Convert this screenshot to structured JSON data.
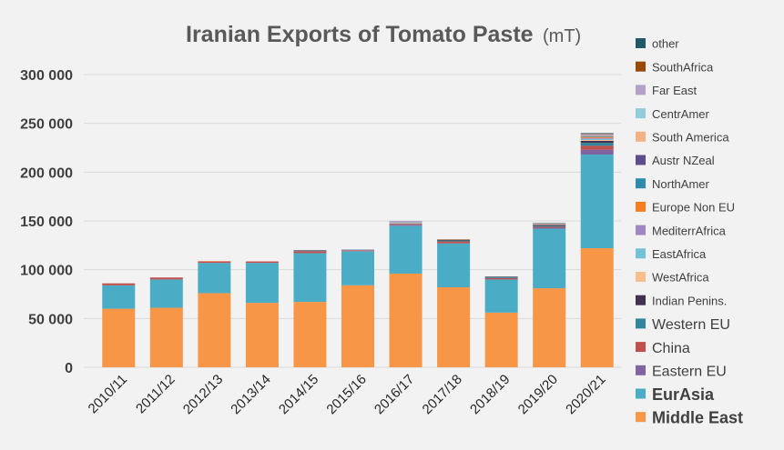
{
  "chart_data": {
    "type": "bar",
    "stacked": true,
    "title": "Iranian Exports of Tomato Paste",
    "title_unit": "(mT)",
    "xlabel": "",
    "ylabel": "",
    "ylim": [
      0,
      300000
    ],
    "yticks": [
      0,
      50000,
      100000,
      150000,
      200000,
      250000,
      300000
    ],
    "ytick_labels": [
      "0",
      "50 000",
      "100 000",
      "150 000",
      "200 000",
      "250 000",
      "300 000"
    ],
    "grid": true,
    "legend_position": "right",
    "categories": [
      "2010/11",
      "2011/12",
      "2012/13",
      "2013/14",
      "2014/15",
      "2015/16",
      "2016/17",
      "2017/18",
      "2018/19",
      "2019/20",
      "2020/21"
    ],
    "series": [
      {
        "name": "Middle East",
        "color": "#f79646",
        "values": [
          60000,
          61000,
          76000,
          66000,
          67000,
          84000,
          96000,
          82000,
          56000,
          81000,
          122000
        ]
      },
      {
        "name": "EurAsia",
        "color": "#4bacc6",
        "values": [
          24000,
          29000,
          31000,
          41000,
          50000,
          35000,
          49000,
          45000,
          34000,
          61000,
          96000
        ]
      },
      {
        "name": "Eastern EU",
        "color": "#8064a2",
        "values": [
          0,
          0,
          0,
          0,
          0,
          0,
          1000,
          0,
          0,
          1000,
          5000
        ]
      },
      {
        "name": "China",
        "color": "#c0504d",
        "values": [
          2000,
          2000,
          1500,
          1500,
          2000,
          1000,
          1000,
          2000,
          1500,
          1000,
          4000
        ]
      },
      {
        "name": "Western EU",
        "color": "#31859c",
        "values": [
          0,
          0,
          0,
          0,
          500,
          0,
          500,
          1000,
          1000,
          1000,
          3000
        ]
      },
      {
        "name": "Indian Penins.",
        "color": "#403151",
        "values": [
          0,
          0,
          0,
          0,
          500,
          0,
          0,
          500,
          500,
          1000,
          2000
        ]
      },
      {
        "name": "WestAfrica",
        "color": "#fabf8f",
        "values": [
          0,
          0,
          500,
          0,
          0,
          0,
          500,
          0,
          0,
          500,
          1000
        ]
      },
      {
        "name": "EastAfrica",
        "color": "#73c2d6",
        "values": [
          0,
          0,
          0,
          0,
          0,
          500,
          500,
          0,
          0,
          0,
          1000
        ]
      },
      {
        "name": "MediterrAfrica",
        "color": "#9e88bf",
        "values": [
          0,
          0,
          0,
          0,
          0,
          0,
          500,
          0,
          0,
          500,
          1000
        ]
      },
      {
        "name": "Europe Non EU",
        "color": "#f47e20",
        "values": [
          0,
          0,
          0,
          0,
          0,
          0,
          0,
          0,
          0,
          500,
          1000
        ]
      },
      {
        "name": "NorthAmer",
        "color": "#2e8bab",
        "values": [
          0,
          0,
          0,
          0,
          0,
          0,
          0,
          0,
          0,
          500,
          500
        ]
      },
      {
        "name": "Austr NZeal",
        "color": "#5f4b8b",
        "values": [
          0,
          0,
          0,
          0,
          0,
          0,
          0,
          0,
          0,
          0,
          500
        ]
      },
      {
        "name": "South America",
        "color": "#f4b183",
        "values": [
          0,
          0,
          0,
          0,
          0,
          0,
          0,
          0,
          0,
          0,
          500
        ]
      },
      {
        "name": "CentrAmer",
        "color": "#92cddc",
        "values": [
          0,
          0,
          0,
          0,
          0,
          0,
          0,
          0,
          0,
          0,
          500
        ]
      },
      {
        "name": "Far East",
        "color": "#b3a2c7",
        "values": [
          0,
          0,
          0,
          0,
          0,
          500,
          1000,
          0,
          0,
          0,
          1000
        ]
      },
      {
        "name": "SouthAfrica",
        "color": "#984807",
        "values": [
          0,
          0,
          0,
          0,
          0,
          0,
          0,
          500,
          0,
          0,
          500
        ]
      },
      {
        "name": "other",
        "color": "#215968",
        "values": [
          0,
          0,
          0,
          0,
          0,
          0,
          0,
          0,
          0,
          0,
          500
        ]
      }
    ]
  }
}
